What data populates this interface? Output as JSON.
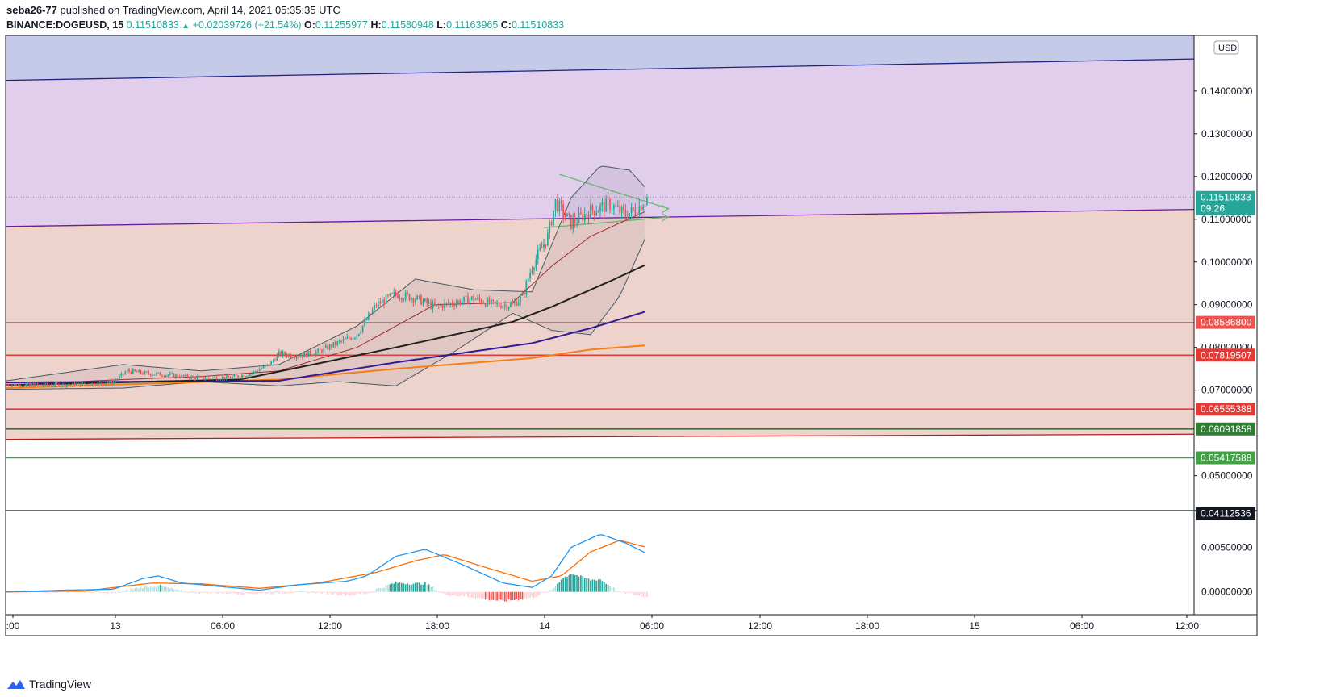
{
  "header": {
    "publisher": "seba26-77",
    "published_text": "published on TradingView.com, April 14, 2021 05:35:35 UTC",
    "symbol": "BINANCE:DOGEUSD, 15",
    "last": "0.11510833",
    "change": "+0.02039726 (+21.54%)",
    "o_label": "O:",
    "o": "0.11255977",
    "h_label": "H:",
    "h": "0.11580948",
    "l_label": "L:",
    "l": "0.11163965",
    "c_label": "C:",
    "c": "0.11510833"
  },
  "footer": {
    "brand": "TradingView"
  },
  "currency_label": "USD",
  "countdown": "09:26",
  "colors": {
    "up": "#26a69a",
    "down": "#ef5350",
    "axis_text": "#131722",
    "zone_blue": "#c5cae9",
    "zone_purple": "#e1cdec",
    "zone_red": "#eed2cc",
    "line_navy": "#1a237e",
    "line_purple": "#6a1b9a",
    "line_darkred": "#b71c1c",
    "ema_black": "#212121",
    "ema_purple": "#311b92",
    "ema_orange": "#f57f17",
    "level_red": "#e53935",
    "level_green": "#2e7d32",
    "level_lightgreen": "#43a047",
    "macd_blue": "#2196f3",
    "macd_orange": "#ff6d00"
  },
  "chart_data": [
    {
      "type": "candlestick",
      "name": "BINANCE:DOGEUSD, 15",
      "x_ticks": [
        ":00",
        "13",
        "06:00",
        "12:00",
        "18:00",
        "14",
        "06:00",
        "12:00",
        "18:00",
        "15",
        "06:00",
        "12:00"
      ],
      "y_ticks": [
        "0.14000000",
        "0.13000000",
        "0.12000000",
        "0.11000000",
        "0.10000000",
        "0.09000000",
        "0.08000000",
        "0.07000000",
        "0.05000000"
      ],
      "ylim": [
        0.042,
        0.153
      ],
      "last_price": 0.11510833,
      "price_labels": [
        {
          "value": 0.11510833,
          "text": "0.11510833",
          "color": "#26a69a"
        },
        {
          "value": 0.085868,
          "text": "0.08586800",
          "color": "#ef5350"
        },
        {
          "value": 0.07819507,
          "text": "0.07819507",
          "color": "#e53935"
        },
        {
          "value": 0.06555388,
          "text": "0.06555388",
          "color": "#e53935"
        },
        {
          "value": 0.06091858,
          "text": "0.06091858",
          "color": "#2e7d32"
        },
        {
          "value": 0.05417588,
          "text": "0.05417588",
          "color": "#43a047"
        },
        {
          "value": 0.04112536,
          "text": "0.04112536",
          "color": "#131722"
        }
      ],
      "horizontal_levels": [
        0.085868,
        0.07819507,
        0.06555388,
        0.06091858,
        0.05417588
      ],
      "close_profile": [
        [
          0,
          0.0713
        ],
        [
          20,
          0.0712
        ],
        [
          40,
          0.0714
        ],
        [
          55,
          0.072
        ],
        [
          62,
          0.0745
        ],
        [
          70,
          0.074
        ],
        [
          85,
          0.0735
        ],
        [
          100,
          0.0728
        ],
        [
          115,
          0.073
        ],
        [
          125,
          0.0738
        ],
        [
          135,
          0.076
        ],
        [
          140,
          0.0785
        ],
        [
          150,
          0.078
        ],
        [
          160,
          0.079
        ],
        [
          170,
          0.081
        ],
        [
          180,
          0.083
        ],
        [
          190,
          0.09
        ],
        [
          200,
          0.0925
        ],
        [
          210,
          0.0915
        ],
        [
          220,
          0.0895
        ],
        [
          230,
          0.0905
        ],
        [
          240,
          0.0915
        ],
        [
          250,
          0.09
        ],
        [
          260,
          0.09
        ],
        [
          265,
          0.092
        ],
        [
          270,
          0.099
        ],
        [
          278,
          0.106
        ],
        [
          282,
          0.114
        ],
        [
          290,
          0.109
        ],
        [
          300,
          0.112
        ],
        [
          310,
          0.1135
        ],
        [
          318,
          0.111
        ],
        [
          324,
          0.1125
        ],
        [
          329,
          0.1151
        ]
      ],
      "indicators": [
        {
          "name": "ema_black",
          "points": [
            [
              0,
              0.0712
            ],
            [
              120,
              0.0725
            ],
            [
              200,
              0.08
            ],
            [
              260,
              0.086
            ],
            [
              280,
              0.0895
            ],
            [
              310,
              0.0955
            ],
            [
              329,
              0.0995
            ]
          ]
        },
        {
          "name": "ema_purple",
          "points": [
            [
              0,
              0.0718
            ],
            [
              140,
              0.0722
            ],
            [
              200,
              0.0765
            ],
            [
              270,
              0.081
            ],
            [
              300,
              0.0845
            ],
            [
              329,
              0.0885
            ]
          ]
        },
        {
          "name": "ema_orange",
          "points": [
            [
              0,
              0.0705
            ],
            [
              140,
              0.0725
            ],
            [
              200,
              0.075
            ],
            [
              270,
              0.0775
            ],
            [
              300,
              0.0795
            ],
            [
              329,
              0.0805
            ]
          ]
        },
        {
          "name": "bb_basis",
          "points": [
            [
              0,
              0.0712
            ],
            [
              60,
              0.0725
            ],
            [
              100,
              0.0732
            ],
            [
              140,
              0.0745
            ],
            [
              180,
              0.08
            ],
            [
              220,
              0.09
            ],
            [
              260,
              0.0905
            ],
            [
              280,
              0.099
            ],
            [
              300,
              0.106
            ],
            [
              329,
              0.112
            ]
          ]
        },
        {
          "name": "bb_upper",
          "points": [
            [
              0,
              0.0722
            ],
            [
              60,
              0.076
            ],
            [
              100,
              0.0745
            ],
            [
              140,
              0.076
            ],
            [
              180,
              0.085
            ],
            [
              210,
              0.096
            ],
            [
              240,
              0.0935
            ],
            [
              270,
              0.093
            ],
            [
              290,
              0.115
            ],
            [
              305,
              0.1225
            ],
            [
              320,
              0.1215
            ],
            [
              329,
              0.117
            ]
          ]
        },
        {
          "name": "bb_lower",
          "points": [
            [
              0,
              0.0702
            ],
            [
              60,
              0.0705
            ],
            [
              100,
              0.072
            ],
            [
              140,
              0.071
            ],
            [
              170,
              0.072
            ],
            [
              200,
              0.071
            ],
            [
              230,
              0.079
            ],
            [
              260,
              0.088
            ],
            [
              280,
              0.084
            ],
            [
              300,
              0.083
            ],
            [
              315,
              0.092
            ],
            [
              329,
              0.1065
            ]
          ]
        }
      ],
      "trend_lines": [
        {
          "name": "channel_top",
          "from": [
            0,
            0.1425
          ],
          "to": [
            610,
            0.1475
          ]
        },
        {
          "name": "channel_mid",
          "from": [
            0,
            0.1083
          ],
          "to": [
            610,
            0.1123
          ]
        },
        {
          "name": "channel_bottom",
          "from": [
            0,
            0.0585
          ],
          "to": [
            610,
            0.0597
          ]
        },
        {
          "name": "triangle_upper",
          "from": [
            284,
            0.1205
          ],
          "to": [
            340,
            0.1125
          ]
        },
        {
          "name": "triangle_lower",
          "from": [
            276,
            0.108
          ],
          "to": [
            340,
            0.1105
          ]
        }
      ]
    },
    {
      "type": "bar+line",
      "name": "MACD",
      "y_ticks": [
        "0.00500000",
        "0.00000000"
      ],
      "ylim": [
        -0.0022,
        0.0085
      ],
      "macd": [
        [
          0,
          0.0
        ],
        [
          30,
          0.0002
        ],
        [
          55,
          0.0003
        ],
        [
          70,
          0.0015
        ],
        [
          78,
          0.0018
        ],
        [
          90,
          0.001
        ],
        [
          110,
          0.0006
        ],
        [
          130,
          0.0002
        ],
        [
          150,
          0.0008
        ],
        [
          175,
          0.0012
        ],
        [
          185,
          0.0018
        ],
        [
          200,
          0.004
        ],
        [
          215,
          0.0048
        ],
        [
          235,
          0.003
        ],
        [
          255,
          0.001
        ],
        [
          270,
          0.0005
        ],
        [
          280,
          0.0018
        ],
        [
          290,
          0.005
        ],
        [
          305,
          0.0065
        ],
        [
          318,
          0.0055
        ],
        [
          329,
          0.0043
        ]
      ],
      "signal": [
        [
          0,
          0.0
        ],
        [
          40,
          0.0001
        ],
        [
          75,
          0.001
        ],
        [
          100,
          0.0009
        ],
        [
          130,
          0.0004
        ],
        [
          160,
          0.001
        ],
        [
          190,
          0.0022
        ],
        [
          210,
          0.0035
        ],
        [
          225,
          0.0042
        ],
        [
          250,
          0.0025
        ],
        [
          270,
          0.0012
        ],
        [
          285,
          0.0018
        ],
        [
          300,
          0.0045
        ],
        [
          315,
          0.0058
        ],
        [
          329,
          0.005
        ]
      ]
    }
  ]
}
